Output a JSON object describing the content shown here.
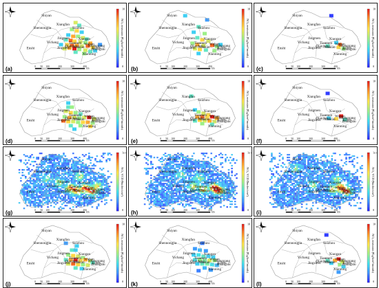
{
  "colors": {
    "scale": [
      "#2b1cff",
      "#3f8cff",
      "#3fe0f0",
      "#9cf088",
      "#ffe64a",
      "#ff9a2a",
      "#e8201a"
    ],
    "border": "#9a9a9a",
    "frame": "#222222"
  },
  "icons": {
    "compass": "north-arrow-icon"
  },
  "scalebar": {
    "ticks": [
      "0",
      "50",
      "100",
      "200",
      "300",
      "400"
    ],
    "unit": "km"
  },
  "cities": [
    {
      "name": "Shiyan",
      "lon": 110.8,
      "lat": 32.65
    },
    {
      "name": "Suizhou",
      "lon": 113.4,
      "lat": 31.75
    },
    {
      "name": "Xiangfan",
      "lon": 112.15,
      "lat": 32.0
    },
    {
      "name": "Shennongjia",
      "lon": 110.45,
      "lat": 31.75
    },
    {
      "name": "Jingmen",
      "lon": 112.2,
      "lat": 31.0
    },
    {
      "name": "Xiaogan",
      "lon": 113.9,
      "lat": 30.95
    },
    {
      "name": "Yichang",
      "lon": 111.3,
      "lat": 30.7
    },
    {
      "name": "Tianmen",
      "lon": 113.15,
      "lat": 30.65
    },
    {
      "name": "Wuhan",
      "lon": 114.3,
      "lat": 30.58
    },
    {
      "name": "Huanggang",
      "lon": 114.9,
      "lat": 30.45
    },
    {
      "name": "Qianjiang",
      "lon": 112.9,
      "lat": 30.42
    },
    {
      "name": "Xiantao",
      "lon": 113.45,
      "lat": 30.36
    },
    {
      "name": "Ezhou",
      "lon": 114.9,
      "lat": 30.3
    },
    {
      "name": "Jingzhou",
      "lon": 112.2,
      "lat": 30.3
    },
    {
      "name": "Enshi",
      "lon": 109.5,
      "lat": 30.28
    },
    {
      "name": "Huangshi",
      "lon": 115.05,
      "lat": 30.2
    },
    {
      "name": "Xianning",
      "lon": 114.3,
      "lat": 29.85
    }
  ],
  "panels": [
    {
      "label": "(a)",
      "variable": "emission",
      "colorbar": {
        "title": "NOₓ emission (Gg/km²/month)",
        "ticks": [
          "10",
          "5",
          "0"
        ]
      },
      "cells": [
        [
          113.2,
          32.2,
          0.6
        ],
        [
          113.5,
          32.0,
          0.4
        ],
        [
          112.9,
          31.7,
          0.5
        ],
        [
          113.3,
          31.6,
          0.7
        ],
        [
          113.7,
          31.5,
          0.3
        ],
        [
          112.6,
          31.3,
          0.3
        ],
        [
          113.0,
          31.2,
          0.8
        ],
        [
          113.4,
          31.2,
          0.5
        ],
        [
          113.8,
          31.1,
          0.6
        ],
        [
          114.1,
          31.0,
          0.4
        ],
        [
          112.4,
          30.95,
          0.4
        ],
        [
          112.8,
          30.9,
          0.9
        ],
        [
          113.1,
          30.85,
          0.7
        ],
        [
          113.6,
          30.8,
          0.6
        ],
        [
          114.0,
          30.75,
          0.5
        ],
        [
          114.4,
          30.7,
          0.8
        ],
        [
          112.5,
          30.6,
          0.7
        ],
        [
          112.9,
          30.55,
          0.9
        ],
        [
          113.3,
          30.55,
          0.8
        ],
        [
          113.7,
          30.5,
          0.6
        ],
        [
          114.2,
          30.5,
          0.9
        ],
        [
          114.6,
          30.4,
          0.7
        ],
        [
          112.7,
          30.35,
          0.8
        ],
        [
          113.1,
          30.3,
          1.0
        ],
        [
          113.5,
          30.25,
          0.5
        ],
        [
          114.0,
          30.2,
          0.6
        ],
        [
          114.4,
          30.1,
          0.4
        ],
        [
          112.3,
          30.3,
          0.6
        ],
        [
          113.2,
          30.05,
          0.4
        ],
        [
          113.9,
          29.95,
          0.5
        ],
        [
          114.8,
          30.15,
          0.3
        ],
        [
          112.0,
          30.6,
          0.3
        ],
        [
          115.2,
          30.6,
          0.2
        ]
      ]
    },
    {
      "label": "(b)",
      "variable": "emission",
      "colorbar": {
        "title": "NOₓ emission (Gg/km²/month)",
        "ticks": [
          "10",
          "5",
          "0"
        ]
      },
      "cells": [
        [
          111.9,
          32.7,
          0.3
        ],
        [
          113.7,
          32.4,
          0.2
        ],
        [
          113.0,
          31.9,
          0.4
        ],
        [
          112.6,
          31.5,
          0.3
        ],
        [
          113.5,
          31.4,
          0.5
        ],
        [
          112.9,
          31.1,
          0.4
        ],
        [
          113.3,
          30.95,
          0.7
        ],
        [
          113.8,
          30.85,
          0.6
        ],
        [
          112.5,
          30.7,
          0.5
        ],
        [
          112.9,
          30.6,
          0.8
        ],
        [
          113.4,
          30.55,
          0.6
        ],
        [
          114.1,
          30.55,
          0.9
        ],
        [
          114.5,
          30.45,
          0.5
        ],
        [
          112.7,
          30.3,
          0.6
        ],
        [
          113.1,
          30.25,
          0.7
        ],
        [
          113.6,
          30.2,
          0.4
        ],
        [
          114.3,
          30.15,
          0.5
        ],
        [
          113.0,
          29.95,
          0.3
        ],
        [
          114.8,
          30.6,
          0.3
        ]
      ]
    },
    {
      "label": "(c)",
      "variable": "emission",
      "colorbar": {
        "title": "NOₓ emission (Gg/km²/month)",
        "ticks": [
          "10",
          "5",
          "0"
        ]
      },
      "cells": [
        [
          113.6,
          32.7,
          0.05
        ],
        [
          114.3,
          30.6,
          0.9
        ],
        [
          114.2,
          30.4,
          0.7
        ],
        [
          113.3,
          30.5,
          0.4
        ],
        [
          114.6,
          30.3,
          0.5
        ],
        [
          114.0,
          30.75,
          0.3
        ]
      ]
    },
    {
      "label": "(d)",
      "variable": "emission",
      "colorbar": {
        "title": "NOₓ emission (Gg/km²/month)",
        "ticks": [
          "10",
          "5",
          "0"
        ]
      },
      "cells": [
        [
          112.6,
          31.6,
          0.3
        ],
        [
          112.6,
          31.3,
          0.4
        ],
        [
          112.9,
          31.3,
          0.5
        ],
        [
          112.4,
          31.0,
          0.6
        ],
        [
          112.8,
          30.9,
          0.7
        ],
        [
          113.2,
          30.9,
          0.5
        ],
        [
          113.6,
          30.8,
          0.4
        ],
        [
          112.3,
          30.6,
          0.5
        ],
        [
          112.7,
          30.55,
          0.8
        ],
        [
          113.1,
          30.55,
          0.6
        ],
        [
          113.5,
          30.5,
          0.5
        ],
        [
          113.9,
          30.55,
          0.6
        ],
        [
          114.3,
          30.55,
          1.0
        ],
        [
          114.7,
          30.45,
          0.6
        ],
        [
          112.2,
          30.3,
          0.9
        ],
        [
          112.6,
          30.25,
          0.7
        ],
        [
          113.0,
          30.25,
          0.6
        ],
        [
          113.4,
          30.2,
          0.5
        ],
        [
          113.8,
          30.2,
          0.7
        ],
        [
          114.2,
          30.2,
          0.8
        ],
        [
          114.6,
          30.15,
          0.5
        ],
        [
          112.8,
          29.95,
          0.4
        ],
        [
          113.6,
          29.95,
          0.5
        ],
        [
          114.4,
          29.9,
          0.7
        ],
        [
          113.1,
          29.7,
          0.3
        ]
      ]
    },
    {
      "label": "(e)",
      "variable": "emission",
      "colorbar": {
        "title": "NOₓ emission (Gg/km²/month)",
        "ticks": [
          "10",
          "5",
          "0"
        ]
      },
      "cells": [
        [
          112.4,
          32.1,
          0.4
        ],
        [
          112.7,
          31.1,
          0.3
        ],
        [
          113.0,
          30.95,
          0.5
        ],
        [
          113.4,
          30.85,
          0.6
        ],
        [
          113.8,
          30.75,
          0.7
        ],
        [
          112.9,
          30.6,
          0.8
        ],
        [
          113.3,
          30.6,
          0.9
        ],
        [
          113.7,
          30.55,
          0.7
        ],
        [
          114.1,
          30.6,
          1.0
        ],
        [
          114.5,
          30.5,
          0.8
        ],
        [
          113.1,
          30.35,
          0.7
        ],
        [
          113.5,
          30.3,
          0.6
        ],
        [
          113.9,
          30.3,
          0.8
        ],
        [
          114.3,
          30.25,
          0.6
        ],
        [
          112.7,
          30.3,
          0.4
        ],
        [
          113.3,
          30.1,
          0.5
        ],
        [
          114.1,
          30.05,
          0.4
        ]
      ]
    },
    {
      "label": "(f)",
      "variable": "emission",
      "colorbar": {
        "title": "NOₓ emission (Gg/km²/month)",
        "ticks": [
          "10",
          "5",
          "0"
        ]
      },
      "cells": [
        [
          113.3,
          32.3,
          0.05
        ],
        [
          114.4,
          30.65,
          1.0
        ],
        [
          114.0,
          30.45,
          0.7
        ],
        [
          113.4,
          30.5,
          0.3
        ],
        [
          114.7,
          30.4,
          0.4
        ]
      ]
    },
    {
      "label": "(g)",
      "variable": "vcd",
      "colorbar": {
        "title": "NO₂ VCD (molec/cm²)",
        "ticks": [
          "1e+16",
          "5",
          "0"
        ]
      },
      "cells": [],
      "hotspots": [
        [
          113.9,
          30.55,
          1.0
        ],
        [
          112.7,
          30.6,
          0.8
        ],
        [
          113.2,
          30.4,
          0.7
        ],
        [
          114.5,
          30.35,
          0.8
        ],
        [
          111.8,
          31.0,
          0.4
        ],
        [
          110.8,
          31.2,
          0.3
        ],
        [
          113.5,
          31.4,
          0.4
        ],
        [
          114.9,
          30.75,
          0.5
        ]
      ]
    },
    {
      "label": "(h)",
      "variable": "vcd",
      "colorbar": {
        "title": "NO₂ VCD (molec/cm²)",
        "ticks": [
          "1e+16",
          "5",
          "0"
        ]
      },
      "cells": [],
      "hotspots": [
        [
          114.2,
          30.6,
          1.0
        ],
        [
          114.6,
          30.4,
          0.8
        ],
        [
          113.3,
          30.5,
          0.6
        ],
        [
          112.5,
          30.7,
          0.5
        ],
        [
          113.0,
          31.3,
          0.4
        ],
        [
          111.5,
          31.6,
          0.3
        ]
      ]
    },
    {
      "label": "(i)",
      "variable": "vcd",
      "colorbar": {
        "title": "NO₂ VCD (molec/cm²)",
        "ticks": [
          "1e+16",
          "5",
          "0"
        ]
      },
      "cells": [],
      "hotspots": [
        [
          114.3,
          30.6,
          1.0
        ],
        [
          114.8,
          30.35,
          0.9
        ],
        [
          113.6,
          30.5,
          0.6
        ],
        [
          112.0,
          30.8,
          0.4
        ],
        [
          114.0,
          31.2,
          0.4
        ],
        [
          110.6,
          32.0,
          0.3
        ]
      ]
    },
    {
      "label": "(j)",
      "variable": "emission",
      "colorbar": {
        "title": "NOₓ emission (Gg/km²/month)",
        "ticks": [
          "10",
          "5",
          "0"
        ]
      },
      "cells": [
        [
          112.4,
          31.8,
          0.2
        ],
        [
          113.3,
          31.6,
          0.3
        ],
        [
          112.9,
          31.3,
          0.4
        ],
        [
          113.2,
          31.3,
          0.3
        ],
        [
          112.6,
          30.95,
          0.5
        ],
        [
          113.0,
          30.9,
          0.7
        ],
        [
          113.4,
          30.85,
          0.6
        ],
        [
          113.8,
          30.75,
          0.5
        ],
        [
          112.4,
          30.6,
          0.4
        ],
        [
          112.8,
          30.6,
          0.8
        ],
        [
          113.2,
          30.6,
          1.0
        ],
        [
          113.6,
          30.55,
          0.7
        ],
        [
          114.0,
          30.6,
          0.8
        ],
        [
          114.4,
          30.5,
          0.6
        ],
        [
          112.6,
          30.3,
          0.6
        ],
        [
          113.0,
          30.3,
          0.9
        ],
        [
          113.4,
          30.25,
          0.7
        ],
        [
          113.8,
          30.25,
          0.5
        ],
        [
          114.2,
          30.2,
          0.6
        ],
        [
          113.2,
          30.0,
          0.4
        ],
        [
          113.7,
          29.95,
          0.3
        ],
        [
          114.6,
          30.4,
          0.4
        ]
      ]
    },
    {
      "label": "(k)",
      "variable": "emission",
      "colorbar": {
        "title": "NOₓ emission (Gg/km²/month)",
        "ticks": [
          "10",
          "5",
          "0"
        ]
      },
      "cells": [
        [
          113.3,
          31.8,
          0.15
        ],
        [
          112.7,
          31.4,
          0.2
        ],
        [
          113.1,
          31.3,
          0.25
        ],
        [
          113.6,
          31.25,
          0.2
        ],
        [
          112.6,
          30.95,
          0.3
        ],
        [
          113.0,
          30.95,
          0.35
        ],
        [
          113.4,
          30.85,
          0.4
        ],
        [
          113.8,
          30.85,
          0.3
        ],
        [
          114.2,
          30.8,
          0.3
        ],
        [
          112.7,
          30.6,
          0.35
        ],
        [
          113.1,
          30.6,
          0.5
        ],
        [
          113.5,
          30.55,
          0.45
        ],
        [
          113.9,
          30.55,
          0.6
        ],
        [
          114.3,
          30.55,
          0.5
        ],
        [
          112.9,
          30.3,
          0.3
        ],
        [
          113.3,
          30.3,
          0.4
        ],
        [
          113.7,
          30.3,
          0.45
        ],
        [
          114.1,
          30.25,
          0.35
        ],
        [
          114.5,
          30.2,
          0.25
        ],
        [
          113.5,
          30.0,
          0.25
        ],
        [
          113.0,
          29.8,
          0.15
        ],
        [
          114.0,
          29.85,
          0.2
        ]
      ]
    },
    {
      "label": "(l)",
      "variable": "emission",
      "colorbar": {
        "title": "NOₓ emission (Gg/km²/month)",
        "ticks": [
          "10",
          "5",
          "0"
        ]
      },
      "cells": [
        [
          113.2,
          32.4,
          0.05
        ],
        [
          114.2,
          30.65,
          1.0
        ],
        [
          113.9,
          30.55,
          0.8
        ],
        [
          114.5,
          30.45,
          0.6
        ],
        [
          113.3,
          30.55,
          0.4
        ],
        [
          114.3,
          30.25,
          0.5
        ],
        [
          113.6,
          30.35,
          0.3
        ],
        [
          114.6,
          30.1,
          0.3
        ],
        [
          114.2,
          29.7,
          0.2
        ]
      ]
    }
  ]
}
